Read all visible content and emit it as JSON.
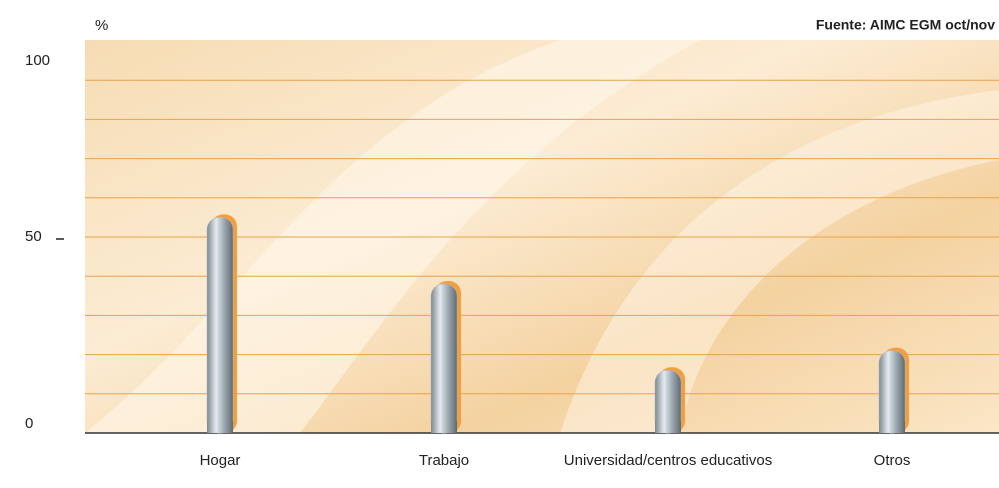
{
  "chart_data": {
    "type": "bar",
    "y_unit": "%",
    "source": "Fuente: AIMC EGM oct/nov",
    "categories": [
      "Hogar",
      "Trabajo",
      "Universidad/centros educativos",
      "Otros"
    ],
    "values": [
      55,
      38,
      16,
      21
    ],
    "color": "#a9b4bd",
    "ylim": [
      0,
      100
    ],
    "yticks": [
      0,
      50,
      100
    ],
    "minor_yticks": [
      10,
      20,
      30,
      40,
      60,
      70,
      80,
      90
    ],
    "grid": true
  }
}
